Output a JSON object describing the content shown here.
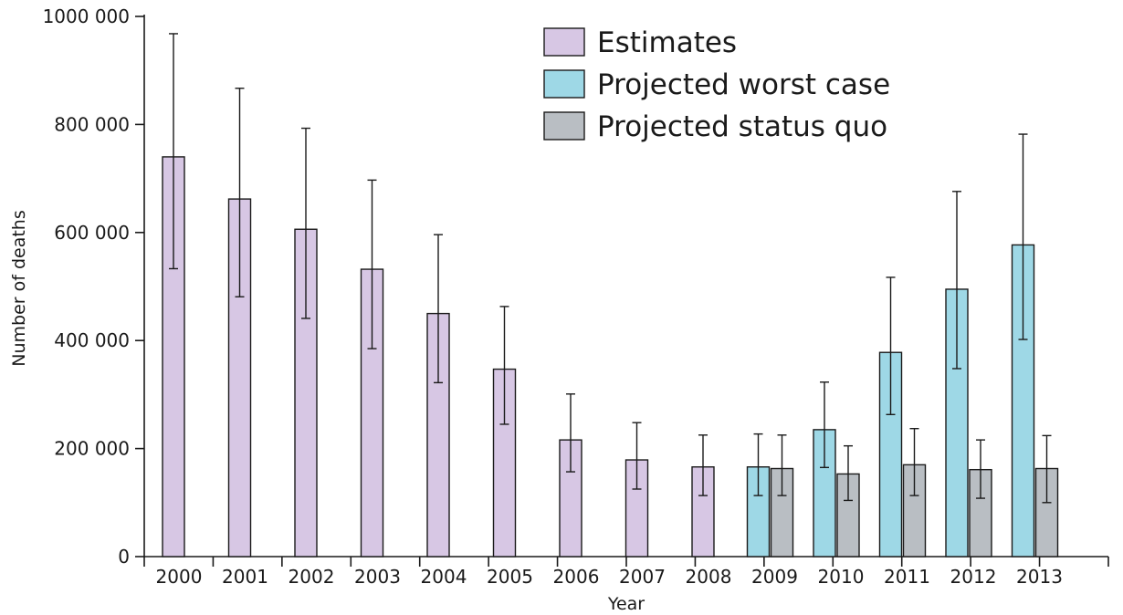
{
  "chart_data": {
    "type": "bar",
    "xlabel": "Year",
    "ylabel": "Number of deaths",
    "ylim": [
      0,
      1000000
    ],
    "yticks": [
      0,
      200000,
      400000,
      600000,
      800000,
      1000000
    ],
    "ytick_labels": [
      "0",
      "200 000",
      "400 000",
      "600 000",
      "800 000",
      "1000 000"
    ],
    "categories": [
      "2000",
      "2001",
      "2002",
      "2003",
      "2004",
      "2005",
      "2006",
      "2007",
      "2008",
      "2009",
      "2010",
      "2011",
      "2012",
      "2013"
    ],
    "grid": false,
    "legend_position": "top-right",
    "series": [
      {
        "name": "Estimates",
        "color": "#d7c7e4",
        "values": [
          740000,
          662000,
          606000,
          532000,
          450000,
          347000,
          216000,
          179000,
          166000,
          null,
          null,
          null,
          null,
          null
        ],
        "error_low": [
          533000,
          481000,
          441000,
          385000,
          322000,
          245000,
          157000,
          125000,
          113000,
          null,
          null,
          null,
          null,
          null
        ],
        "error_high": [
          968000,
          867000,
          793000,
          697000,
          596000,
          463000,
          301000,
          248000,
          225000,
          null,
          null,
          null,
          null,
          null
        ]
      },
      {
        "name": "Projected worst case",
        "color": "#9ed8e6",
        "values": [
          null,
          null,
          null,
          null,
          null,
          null,
          null,
          null,
          null,
          166000,
          235000,
          378000,
          495000,
          577000
        ],
        "error_low": [
          null,
          null,
          null,
          null,
          null,
          null,
          null,
          null,
          null,
          113000,
          165000,
          263000,
          348000,
          402000
        ],
        "error_high": [
          null,
          null,
          null,
          null,
          null,
          null,
          null,
          null,
          null,
          227000,
          323000,
          517000,
          676000,
          782000
        ]
      },
      {
        "name": "Projected status quo",
        "color": "#b9bec3",
        "values": [
          null,
          null,
          null,
          null,
          null,
          null,
          null,
          null,
          null,
          163000,
          153000,
          170000,
          161000,
          163000
        ],
        "error_low": [
          null,
          null,
          null,
          null,
          null,
          null,
          null,
          null,
          null,
          113000,
          104000,
          113000,
          108000,
          100000
        ],
        "error_high": [
          null,
          null,
          null,
          null,
          null,
          null,
          null,
          null,
          null,
          225000,
          205000,
          237000,
          216000,
          224000
        ]
      }
    ]
  }
}
